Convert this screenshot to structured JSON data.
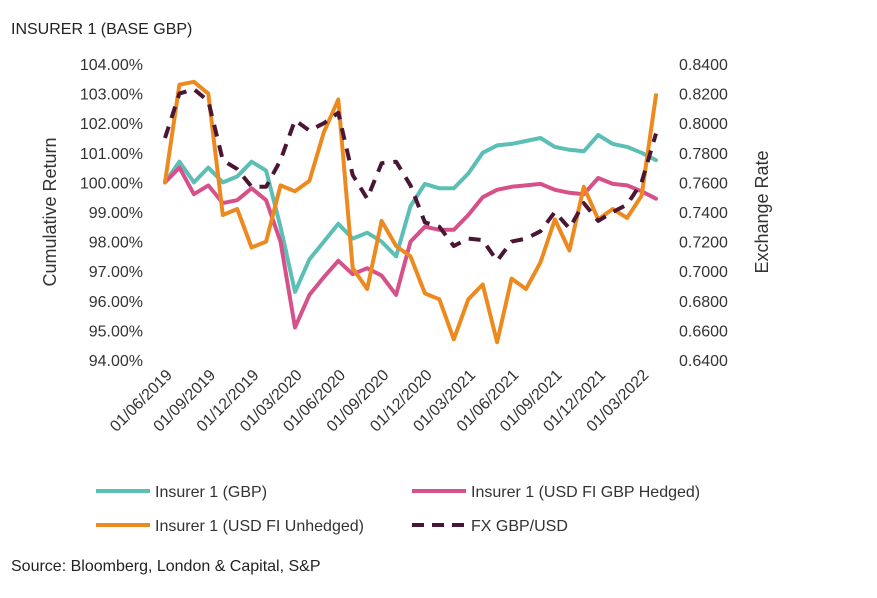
{
  "title": "INSURER 1 (BASE GBP)",
  "source": "Source: Bloomberg, London & Capital, S&P",
  "colors": {
    "insurer_gbp": "#5bbfb5",
    "insurer_usd_hedged": "#d6508a",
    "insurer_usd_unhedged": "#ed8a1f",
    "fx": "#4a1633"
  },
  "chart_data": {
    "type": "line",
    "ylabel": "Cumulative Return",
    "y2label": "Exchange Rate",
    "ylim": [
      94,
      104
    ],
    "y2lim": [
      0.64,
      0.84
    ],
    "y_ticks": [
      "104.00%",
      "103.00%",
      "102.00%",
      "101.00%",
      "100.00%",
      "99.00%",
      "98.00%",
      "97.00%",
      "96.00%",
      "95.00%",
      "94.00%"
    ],
    "y2_ticks": [
      "0.8400",
      "0.8200",
      "0.8000",
      "0.7800",
      "0.7600",
      "0.7400",
      "0.7200",
      "0.7000",
      "0.6800",
      "0.6600",
      "0.6400"
    ],
    "x_ticks": [
      "01/06/2019",
      "01/09/2019",
      "01/12/2019",
      "01/03/2020",
      "01/06/2020",
      "01/09/2020",
      "01/12/2020",
      "01/03/2021",
      "01/06/2021",
      "01/09/2021",
      "01/12/2021",
      "01/03/2022"
    ],
    "legend_position": "bottom",
    "grid": false,
    "x": [
      "2019-06-01",
      "2019-07-01",
      "2019-08-01",
      "2019-09-01",
      "2019-10-01",
      "2019-11-01",
      "2019-12-01",
      "2020-01-01",
      "2020-02-01",
      "2020-03-01",
      "2020-04-01",
      "2020-05-01",
      "2020-06-01",
      "2020-07-01",
      "2020-08-01",
      "2020-09-01",
      "2020-10-01",
      "2020-11-01",
      "2020-12-01",
      "2021-01-01",
      "2021-02-01",
      "2021-03-01",
      "2021-04-01",
      "2021-05-01",
      "2021-06-01",
      "2021-07-01",
      "2021-08-01",
      "2021-09-01",
      "2021-10-01",
      "2021-11-01",
      "2021-12-01",
      "2022-01-01",
      "2022-02-01",
      "2022-03-01",
      "2022-04-01"
    ],
    "series": [
      {
        "name": "Insurer 1 (GBP)",
        "axis": "left",
        "values": [
          100.0,
          100.7,
          100.0,
          100.5,
          100.0,
          100.2,
          100.7,
          100.4,
          98.5,
          96.3,
          97.4,
          98.0,
          98.6,
          98.1,
          98.3,
          98.0,
          97.5,
          99.2,
          99.95,
          99.8,
          99.8,
          100.3,
          101.0,
          101.25,
          101.3,
          101.4,
          101.5,
          101.2,
          101.1,
          101.05,
          101.6,
          101.3,
          101.2,
          101.0,
          100.75
        ]
      },
      {
        "name": "Insurer 1 (USD FI GBP Hedged)",
        "axis": "left",
        "values": [
          100.0,
          100.5,
          99.6,
          99.9,
          99.3,
          99.4,
          99.8,
          99.4,
          98.0,
          95.1,
          96.2,
          96.8,
          97.35,
          96.9,
          97.1,
          96.85,
          96.2,
          98.0,
          98.5,
          98.4,
          98.4,
          98.9,
          99.5,
          99.75,
          99.85,
          99.9,
          99.95,
          99.75,
          99.65,
          99.6,
          100.15,
          99.95,
          99.9,
          99.7,
          99.45
        ]
      },
      {
        "name": "Insurer 1 (USD FI Unhedged)",
        "axis": "left",
        "values": [
          100.0,
          103.3,
          103.4,
          103.0,
          98.9,
          99.1,
          97.8,
          98.0,
          99.9,
          99.7,
          100.05,
          101.7,
          102.8,
          97.1,
          96.4,
          98.7,
          97.85,
          97.5,
          96.25,
          96.05,
          94.7,
          96.05,
          96.55,
          94.6,
          96.75,
          96.4,
          97.3,
          98.75,
          97.7,
          99.85,
          98.75,
          99.1,
          98.8,
          99.55,
          102.95
        ]
      },
      {
        "name": "FX GBP/USD",
        "axis": "right",
        "dashed": true,
        "values": [
          0.79,
          0.82,
          0.823,
          0.815,
          0.775,
          0.769,
          0.757,
          0.757,
          0.775,
          0.802,
          0.795,
          0.8,
          0.807,
          0.765,
          0.749,
          0.773,
          0.774,
          0.758,
          0.733,
          0.73,
          0.717,
          0.722,
          0.721,
          0.707,
          0.72,
          0.722,
          0.727,
          0.74,
          0.729,
          0.746,
          0.734,
          0.74,
          0.745,
          0.76,
          0.793
        ]
      }
    ]
  }
}
